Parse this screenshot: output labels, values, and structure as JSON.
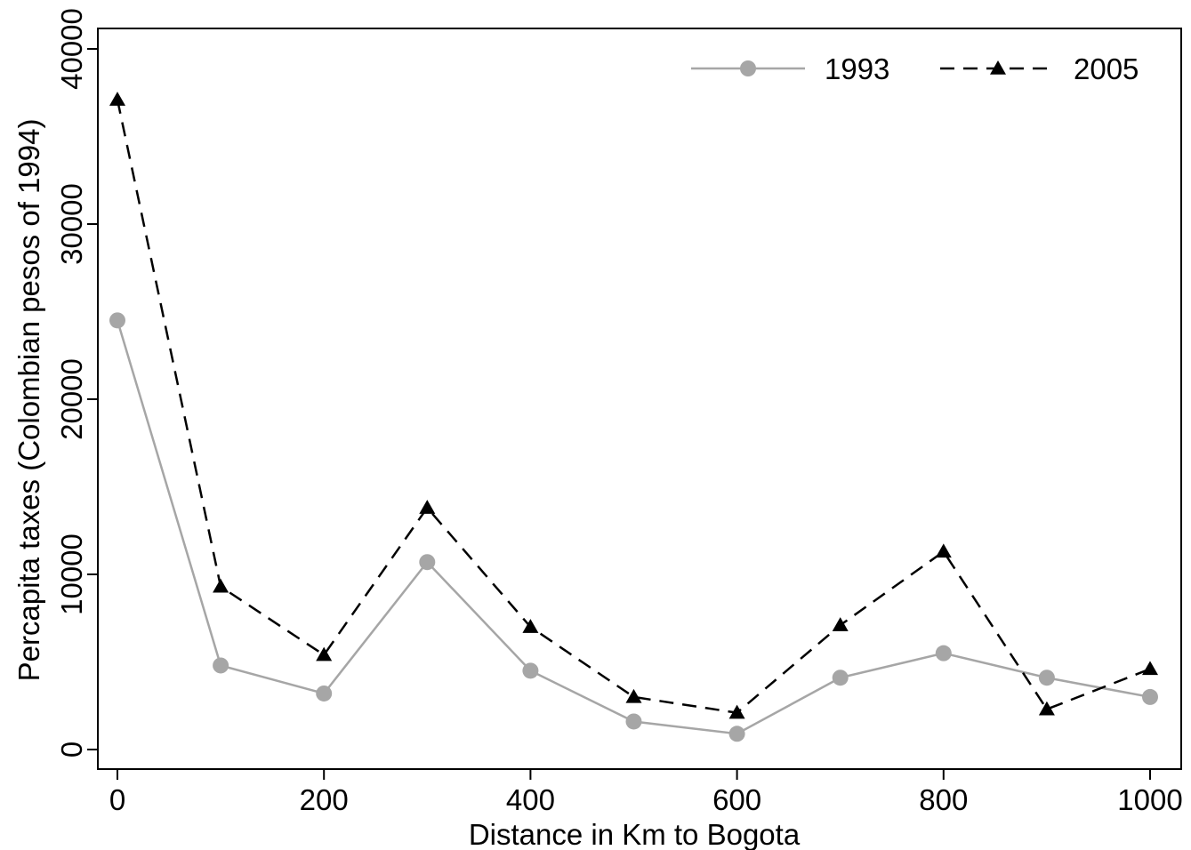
{
  "chart_data": {
    "type": "line",
    "title": "",
    "xlabel": "Distance in Km to Bogota",
    "ylabel": "Percapita taxes (Colombian pesos of 1994)",
    "xlim": [
      0,
      1000
    ],
    "ylim": [
      0,
      40000
    ],
    "x_ticks": [
      0,
      200,
      400,
      600,
      800,
      1000
    ],
    "y_ticks": [
      0,
      10000,
      20000,
      30000,
      40000
    ],
    "grid": false,
    "legend_position": "top-right",
    "x": [
      0,
      100,
      200,
      300,
      400,
      500,
      600,
      700,
      800,
      900,
      1000
    ],
    "series": [
      {
        "name": "1993",
        "color": "#a6a6a6",
        "line_style": "solid",
        "marker": "circle",
        "values": [
          24500,
          4800,
          3200,
          10700,
          4500,
          1600,
          900,
          4100,
          5500,
          4100,
          3000
        ]
      },
      {
        "name": "2005",
        "color": "#000000",
        "line_style": "dashed",
        "marker": "triangle",
        "values": [
          37100,
          9300,
          5400,
          13800,
          7000,
          3000,
          2100,
          7100,
          11300,
          2300,
          4600
        ]
      }
    ]
  }
}
